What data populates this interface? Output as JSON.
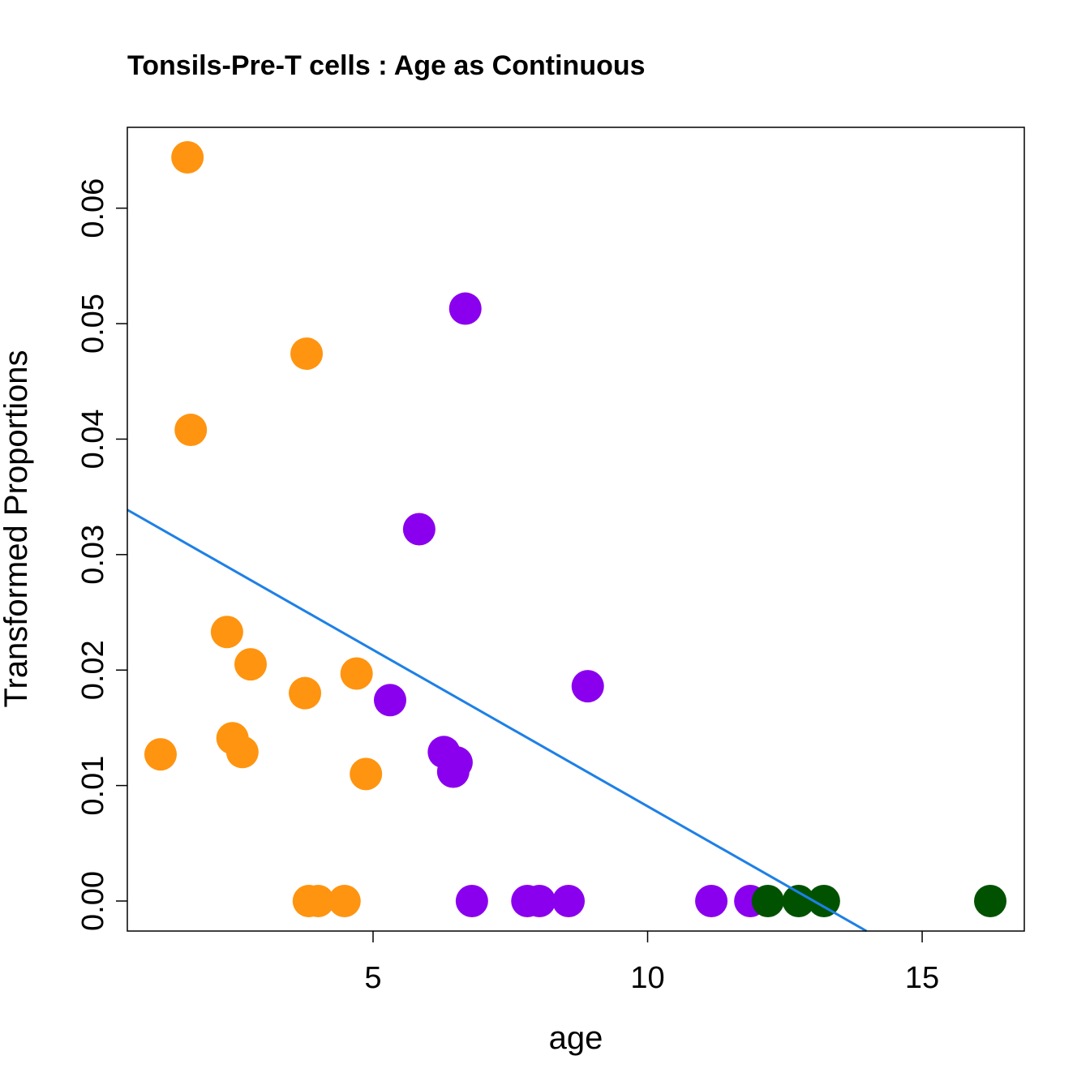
{
  "chart_data": {
    "type": "scatter",
    "title": "Tonsils-Pre-T cells : Age as Continuous",
    "xlabel": "age",
    "ylabel": "Transformed Proportions",
    "xlim": [
      0.525,
      16.86
    ],
    "ylim": [
      -0.0026,
      0.067
    ],
    "xticks": [
      5,
      10,
      15
    ],
    "xtick_labels": [
      "5",
      "10",
      "15"
    ],
    "yticks": [
      0,
      0.01,
      0.02,
      0.03,
      0.04,
      0.05,
      0.06
    ],
    "ytick_labels": [
      "0.00",
      "0.01",
      "0.02",
      "0.03",
      "0.04",
      "0.05",
      "0.06"
    ],
    "grid": false,
    "series": [
      {
        "name": "orange",
        "color": "#FF9410",
        "x": [
          1.62,
          1.68,
          3.79,
          2.34,
          2.77,
          3.76,
          4.7,
          2.44,
          2.62,
          1.13,
          4.87,
          3.83,
          4.0,
          4.48
        ],
        "y": [
          0.0644,
          0.0408,
          0.0474,
          0.0233,
          0.0205,
          0.018,
          0.0197,
          0.0141,
          0.0129,
          0.0127,
          0.011,
          0,
          0,
          0
        ]
      },
      {
        "name": "purple",
        "color": "#8A00EE",
        "x": [
          6.68,
          5.84,
          8.91,
          5.31,
          6.29,
          6.52,
          6.46,
          6.8,
          7.81,
          8.03,
          8.56,
          11.16,
          11.87
        ],
        "y": [
          0.0513,
          0.0322,
          0.0186,
          0.0174,
          0.0129,
          0.012,
          0.0112,
          0,
          0,
          0,
          0,
          0,
          0
        ]
      },
      {
        "name": "darkgreen",
        "color": "#005200",
        "x": [
          12.19,
          12.75,
          13.21,
          16.24
        ],
        "y": [
          0,
          0,
          0,
          0
        ]
      }
    ],
    "fit_line": {
      "intercept": 0.0353,
      "slope": -0.00271,
      "color": "#1E80E6"
    }
  }
}
